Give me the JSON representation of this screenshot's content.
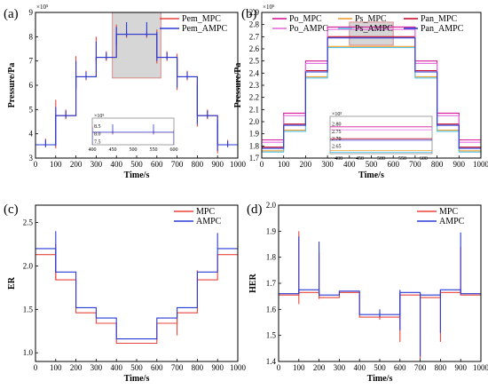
{
  "chart_data": [
    {
      "panel_label": "(a)",
      "type": "line",
      "xlabel": "Time/s",
      "ylabel": "Pressure/Pa",
      "xlim": [
        0,
        1000
      ],
      "ylim": [
        3,
        9
      ],
      "y_multiplier": "×10⁵",
      "xticks": [
        "0",
        "100",
        "200",
        "300",
        "400",
        "500",
        "600",
        "700",
        "800",
        "900",
        "1000"
      ],
      "yticks": [
        "3",
        "4",
        "5",
        "6",
        "7",
        "8",
        "9"
      ],
      "series": [
        {
          "name": "Pem_MPC",
          "color": "#e8453c",
          "steps": [
            [
              0,
              3.55
            ],
            [
              100,
              4.75
            ],
            [
              200,
              6.35
            ],
            [
              300,
              7.15
            ],
            [
              400,
              8.1
            ],
            [
              600,
              7.15
            ],
            [
              700,
              6.35
            ],
            [
              800,
              4.75
            ],
            [
              900,
              3.55
            ],
            [
              1000,
              3.55
            ]
          ],
          "spikes": [
            [
              50,
              3.45,
              3.8
            ],
            [
              100,
              3.4,
              5.4
            ],
            [
              150,
              4.6,
              5.0
            ],
            [
              200,
              5.8,
              7.2
            ],
            [
              250,
              6.2,
              6.6
            ],
            [
              300,
              6.9,
              8.0
            ],
            [
              350,
              7.0,
              7.4
            ],
            [
              400,
              7.6,
              8.5
            ],
            [
              450,
              7.95,
              8.25
            ],
            [
              550,
              7.95,
              8.25
            ],
            [
              600,
              6.9,
              8.3
            ],
            [
              650,
              7.0,
              7.4
            ],
            [
              700,
              5.8,
              7.3
            ],
            [
              750,
              6.2,
              6.6
            ],
            [
              800,
              4.3,
              6.2
            ],
            [
              850,
              4.6,
              5.0
            ],
            [
              900,
              3.2,
              4.6
            ],
            [
              950,
              3.45,
              3.75
            ]
          ]
        },
        {
          "name": "Pem_AMPC",
          "color": "#2a3bd6",
          "steps": [
            [
              0,
              3.55
            ],
            [
              100,
              4.75
            ],
            [
              200,
              6.35
            ],
            [
              300,
              7.15
            ],
            [
              400,
              8.1
            ],
            [
              600,
              7.15
            ],
            [
              700,
              6.35
            ],
            [
              800,
              4.75
            ],
            [
              900,
              3.55
            ],
            [
              1000,
              3.55
            ]
          ],
          "spikes": [
            [
              50,
              3.45,
              3.75
            ],
            [
              100,
              3.5,
              5.1
            ],
            [
              150,
              4.65,
              4.95
            ],
            [
              200,
              5.9,
              7.0
            ],
            [
              250,
              6.25,
              6.55
            ],
            [
              300,
              7.0,
              7.8
            ],
            [
              350,
              7.05,
              7.35
            ],
            [
              400,
              7.7,
              8.4
            ],
            [
              450,
              8.0,
              8.6
            ],
            [
              550,
              8.0,
              8.6
            ],
            [
              600,
              7.0,
              8.2
            ],
            [
              650,
              7.05,
              7.35
            ],
            [
              700,
              5.9,
              7.1
            ],
            [
              750,
              6.25,
              6.55
            ],
            [
              800,
              4.4,
              6.0
            ],
            [
              850,
              4.65,
              4.95
            ],
            [
              900,
              3.3,
              4.5
            ],
            [
              950,
              3.45,
              3.7
            ]
          ]
        }
      ],
      "highlight": {
        "x": [
          380,
          620
        ],
        "y": [
          6.3,
          9.0
        ]
      },
      "inset": {
        "xlim": [
          400,
          600
        ],
        "ylim": [
          7.3,
          9.0
        ],
        "xticks": [
          "400",
          "450",
          "500",
          "550",
          "600"
        ],
        "yticks": [
          "8.5",
          "8.0",
          "7.5"
        ],
        "y_multiplier": "×10⁵"
      },
      "legend_position": "top-right"
    },
    {
      "panel_label": "(b)",
      "type": "line",
      "xlabel": "Time/s",
      "ylabel": "Pressure/Pa",
      "xlim": [
        0,
        1000
      ],
      "ylim": [
        1.7,
        2.9
      ],
      "y_multiplier": "×10⁵",
      "xticks": [
        "0",
        "100",
        "200",
        "300",
        "400",
        "500",
        "600",
        "700",
        "800",
        "900",
        "1000"
      ],
      "yticks": [
        "1.7",
        "1.8",
        "1.9",
        "2.0",
        "2.1",
        "2.2",
        "2.3",
        "2.4",
        "2.5",
        "2.6",
        "2.7",
        "2.8",
        "2.9"
      ],
      "series": [
        {
          "name": "Po_MPC",
          "color": "#d8199a",
          "steps": [
            [
              0,
              1.85
            ],
            [
              100,
              2.07
            ],
            [
              200,
              2.5
            ],
            [
              300,
              2.78
            ],
            [
              400,
              2.78
            ],
            [
              600,
              2.78
            ],
            [
              700,
              2.5
            ],
            [
              800,
              2.07
            ],
            [
              900,
              1.85
            ],
            [
              1000,
              1.85
            ]
          ]
        },
        {
          "name": "Ps_MPC",
          "color": "#f0a030",
          "steps": [
            [
              0,
              1.76
            ],
            [
              100,
              1.93
            ],
            [
              200,
              2.37
            ],
            [
              300,
              2.62
            ],
            [
              400,
              2.62
            ],
            [
              600,
              2.62
            ],
            [
              700,
              2.37
            ],
            [
              800,
              1.93
            ],
            [
              900,
              1.76
            ],
            [
              1000,
              1.76
            ]
          ]
        },
        {
          "name": "Pan_MPC",
          "color": "#c8102e",
          "steps": [
            [
              0,
              1.79
            ],
            [
              100,
              1.98
            ],
            [
              200,
              2.42
            ],
            [
              300,
              2.7
            ],
            [
              400,
              2.7
            ],
            [
              600,
              2.7
            ],
            [
              700,
              2.42
            ],
            [
              800,
              1.98
            ],
            [
              900,
              1.79
            ],
            [
              1000,
              1.79
            ]
          ]
        },
        {
          "name": "Po_AMPC",
          "color": "#e56fe0",
          "steps": [
            [
              0,
              1.83
            ],
            [
              100,
              2.05
            ],
            [
              200,
              2.48
            ],
            [
              300,
              2.76
            ],
            [
              400,
              2.76
            ],
            [
              600,
              2.76
            ],
            [
              700,
              2.48
            ],
            [
              800,
              2.05
            ],
            [
              900,
              1.83
            ],
            [
              1000,
              1.83
            ]
          ]
        },
        {
          "name": "Ps_AMPC",
          "color": "#4fc3e8",
          "steps": [
            [
              0,
              1.75
            ],
            [
              100,
              1.92
            ],
            [
              200,
              2.36
            ],
            [
              300,
              2.61
            ],
            [
              400,
              2.61
            ],
            [
              600,
              2.61
            ],
            [
              700,
              2.36
            ],
            [
              800,
              1.92
            ],
            [
              900,
              1.75
            ],
            [
              1000,
              1.75
            ]
          ]
        },
        {
          "name": "Pan_AMPC",
          "color": "#2a3bd6",
          "steps": [
            [
              0,
              1.78
            ],
            [
              100,
              1.97
            ],
            [
              200,
              2.41
            ],
            [
              300,
              2.69
            ],
            [
              400,
              2.69
            ],
            [
              600,
              2.69
            ],
            [
              700,
              2.41
            ],
            [
              800,
              1.97
            ],
            [
              900,
              1.78
            ],
            [
              1000,
              1.78
            ]
          ]
        }
      ],
      "highlight": {
        "x": [
          400,
          600
        ],
        "y": [
          2.63,
          2.82
        ]
      },
      "inset": {
        "xlim": [
          380,
          620
        ],
        "ylim": [
          2.6,
          2.85
        ],
        "xticks": [
          "400",
          "450",
          "500",
          "550",
          "600"
        ],
        "yticks": [
          "2.80",
          "2.75",
          "2.70",
          "2.65"
        ],
        "y_multiplier": "×10⁵"
      },
      "legend_position": "top"
    },
    {
      "panel_label": "(c)",
      "type": "line",
      "xlabel": "Time/s",
      "ylabel": "ER",
      "xlim": [
        0,
        1000
      ],
      "ylim": [
        0.9,
        2.7
      ],
      "xticks": [
        "0",
        "100",
        "200",
        "300",
        "400",
        "500",
        "600",
        "700",
        "800",
        "900",
        "1000"
      ],
      "yticks": [
        "1.0",
        "1.5",
        "2.0",
        "2.5"
      ],
      "series": [
        {
          "name": "MPC",
          "color": "#e8453c",
          "steps": [
            [
              0,
              2.13
            ],
            [
              100,
              1.84
            ],
            [
              200,
              1.46
            ],
            [
              300,
              1.34
            ],
            [
              400,
              1.11
            ],
            [
              600,
              1.34
            ],
            [
              700,
              1.46
            ],
            [
              800,
              1.84
            ],
            [
              900,
              2.13
            ],
            [
              1000,
              2.13
            ]
          ],
          "spikes": [
            [
              100,
              1.84,
              2.25
            ],
            [
              700,
              1.2,
              1.46
            ],
            [
              800,
              1.84,
              1.95
            ]
          ]
        },
        {
          "name": "AMPC",
          "color": "#2a3bd6",
          "steps": [
            [
              0,
              2.2
            ],
            [
              100,
              1.93
            ],
            [
              200,
              1.52
            ],
            [
              300,
              1.4
            ],
            [
              400,
              1.16
            ],
            [
              600,
              1.4
            ],
            [
              700,
              1.52
            ],
            [
              800,
              1.93
            ],
            [
              900,
              2.2
            ],
            [
              1000,
              2.2
            ]
          ],
          "spikes": [
            [
              100,
              1.93,
              2.4
            ],
            [
              900,
              2.2,
              2.38
            ]
          ]
        }
      ],
      "legend_position": "top-right"
    },
    {
      "panel_label": "(d)",
      "type": "line",
      "xlabel": "Time/s",
      "ylabel": "HER",
      "xlim": [
        0,
        1000
      ],
      "ylim": [
        1.4,
        2.0
      ],
      "xticks": [
        "0",
        "100",
        "200",
        "300",
        "400",
        "500",
        "600",
        "700",
        "800",
        "900",
        "1000"
      ],
      "yticks": [
        "1.4",
        "1.5",
        "1.6",
        "1.7",
        "1.8",
        "1.9",
        "2.0"
      ],
      "series": [
        {
          "name": "MPC",
          "color": "#e8453c",
          "steps": [
            [
              0,
              1.655
            ],
            [
              100,
              1.665
            ],
            [
              200,
              1.645
            ],
            [
              300,
              1.665
            ],
            [
              400,
              1.57
            ],
            [
              600,
              1.655
            ],
            [
              700,
              1.645
            ],
            [
              800,
              1.665
            ],
            [
              900,
              1.655
            ],
            [
              1000,
              1.655
            ]
          ],
          "spikes": [
            [
              100,
              1.62,
              1.9
            ],
            [
              200,
              1.64,
              1.82
            ],
            [
              500,
              1.56,
              1.59
            ],
            [
              600,
              1.475,
              1.66
            ],
            [
              700,
              1.41,
              1.65
            ],
            [
              800,
              1.475,
              1.665
            ],
            [
              900,
              1.655,
              1.84
            ]
          ]
        },
        {
          "name": "AMPC",
          "color": "#2a3bd6",
          "steps": [
            [
              0,
              1.66
            ],
            [
              100,
              1.675
            ],
            [
              200,
              1.655
            ],
            [
              300,
              1.67
            ],
            [
              400,
              1.58
            ],
            [
              600,
              1.665
            ],
            [
              700,
              1.655
            ],
            [
              800,
              1.675
            ],
            [
              900,
              1.66
            ],
            [
              1000,
              1.66
            ]
          ],
          "spikes": [
            [
              100,
              1.66,
              1.88
            ],
            [
              200,
              1.655,
              1.86
            ],
            [
              500,
              1.57,
              1.6
            ],
            [
              600,
              1.52,
              1.675
            ],
            [
              700,
              1.42,
              1.66
            ],
            [
              800,
              1.51,
              1.675
            ],
            [
              900,
              1.66,
              1.895
            ]
          ]
        }
      ],
      "legend_position": "top-right"
    }
  ]
}
